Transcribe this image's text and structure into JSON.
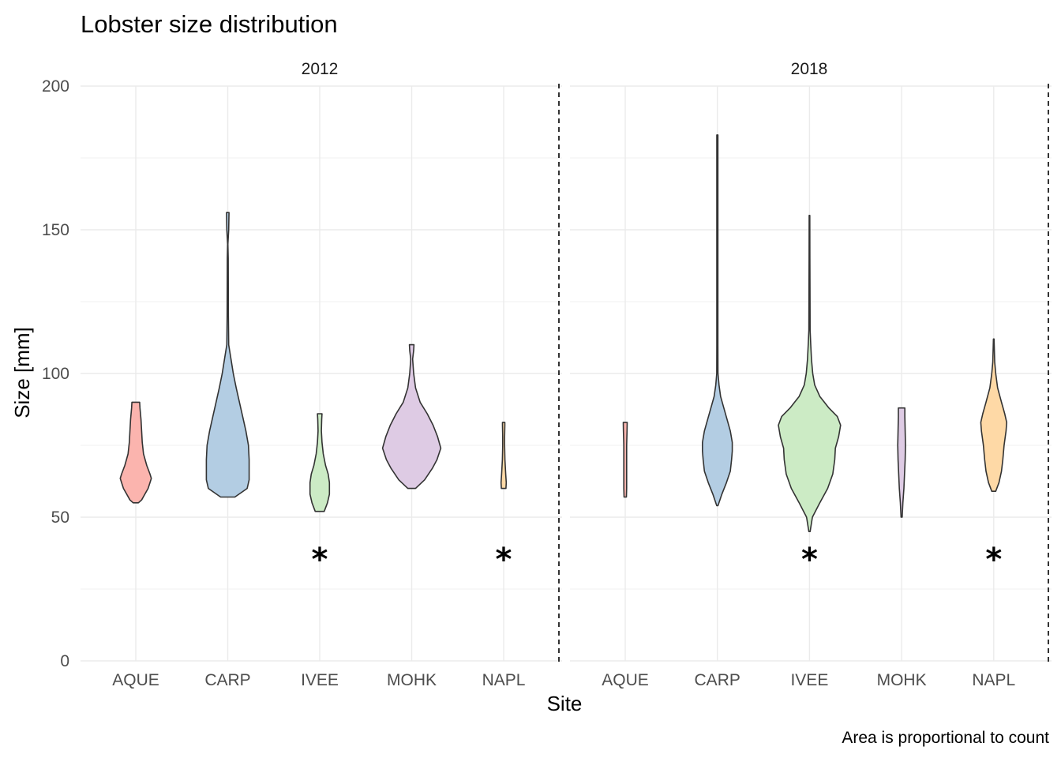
{
  "chart_data": {
    "type": "violin",
    "title": "Lobster size distribution",
    "xlabel": "Site",
    "ylabel": "Size [mm]",
    "caption": "Area is proportional to count",
    "ylim": [
      0,
      200
    ],
    "y_ticks": [
      "0",
      "50",
      "100",
      "150",
      "200"
    ],
    "y_tick_values": [
      0,
      50,
      100,
      150,
      200
    ],
    "categories": [
      "AQUE",
      "CARP",
      "IVEE",
      "MOHK",
      "NAPL"
    ],
    "grid": true,
    "facet_separator": "dashed vertical line after each panel",
    "colors": {
      "AQUE": "#FBB4AE",
      "CARP": "#B3CDE3",
      "IVEE": "#CCEBC5",
      "MOHK": "#DECBE4",
      "NAPL": "#FED9A6",
      "outline": "#333333",
      "grid": "#ebebeb"
    },
    "panels": [
      {
        "label": "2012",
        "significance_marker": "*",
        "violins": [
          {
            "site": "AQUE",
            "profile": [
              [
                55,
                0.4
              ],
              [
                56,
                0.9
              ],
              [
                58,
                1.4
              ],
              [
                60,
                1.9
              ],
              [
                62,
                2.2
              ],
              [
                63.5,
                2.4
              ],
              [
                65,
                2.2
              ],
              [
                68,
                1.7
              ],
              [
                72,
                1.2
              ],
              [
                76,
                1.0
              ],
              [
                80,
                0.9
              ],
              [
                84,
                0.8
              ],
              [
                88,
                0.65
              ],
              [
                90,
                0.6
              ]
            ]
          },
          {
            "site": "CARP",
            "profile": [
              [
                57,
                1.1
              ],
              [
                60,
                3.0
              ],
              [
                63,
                3.3
              ],
              [
                65,
                3.3
              ],
              [
                70,
                3.3
              ],
              [
                75,
                3.2
              ],
              [
                80,
                2.8
              ],
              [
                85,
                2.3
              ],
              [
                90,
                1.8
              ],
              [
                95,
                1.3
              ],
              [
                100,
                0.85
              ],
              [
                105,
                0.5
              ],
              [
                110,
                0.15
              ],
              [
                120,
                0.1
              ],
              [
                140,
                0.07
              ],
              [
                145,
                0.03
              ],
              [
                150,
                0.15
              ],
              [
                156,
                0.2
              ]
            ]
          },
          {
            "site": "IVEE",
            "profile": [
              [
                52,
                0.7
              ],
              [
                55,
                1.2
              ],
              [
                58,
                1.5
              ],
              [
                62,
                1.5
              ],
              [
                65,
                1.3
              ],
              [
                68,
                0.9
              ],
              [
                72,
                0.55
              ],
              [
                76,
                0.35
              ],
              [
                80,
                0.25
              ],
              [
                84,
                0.3
              ],
              [
                86,
                0.35
              ]
            ],
            "significant": true
          },
          {
            "site": "MOHK",
            "profile": [
              [
                60,
                0.6
              ],
              [
                63,
                2.0
              ],
              [
                67,
                3.2
              ],
              [
                70,
                3.9
              ],
              [
                74,
                4.5
              ],
              [
                78,
                4.0
              ],
              [
                82,
                3.3
              ],
              [
                86,
                2.4
              ],
              [
                90,
                1.3
              ],
              [
                95,
                0.6
              ],
              [
                100,
                0.3
              ],
              [
                105,
                0.15
              ],
              [
                108,
                0.3
              ],
              [
                110,
                0.35
              ]
            ]
          },
          {
            "site": "NAPL",
            "profile": [
              [
                60,
                0.35
              ],
              [
                62,
                0.4
              ],
              [
                65,
                0.32
              ],
              [
                70,
                0.2
              ],
              [
                75,
                0.15
              ],
              [
                78,
                0.15
              ],
              [
                82,
                0.18
              ],
              [
                83,
                0.18
              ]
            ],
            "significant": true
          }
        ]
      },
      {
        "label": "2018",
        "significance_marker": "*",
        "violins": [
          {
            "site": "AQUE",
            "profile": [
              [
                57,
                0.18
              ],
              [
                60,
                0.22
              ],
              [
                65,
                0.22
              ],
              [
                70,
                0.22
              ],
              [
                75,
                0.22
              ],
              [
                80,
                0.28
              ],
              [
                83,
                0.3
              ]
            ]
          },
          {
            "site": "CARP",
            "profile": [
              [
                54,
                0.1
              ],
              [
                58,
                0.7
              ],
              [
                62,
                1.4
              ],
              [
                66,
                2.0
              ],
              [
                70,
                2.2
              ],
              [
                73,
                2.3
              ],
              [
                76,
                2.3
              ],
              [
                80,
                2.0
              ],
              [
                84,
                1.5
              ],
              [
                88,
                1.0
              ],
              [
                92,
                0.5
              ],
              [
                96,
                0.25
              ],
              [
                100,
                0.1
              ],
              [
                110,
                0.08
              ],
              [
                150,
                0.08
              ],
              [
                183,
                0.08
              ]
            ]
          },
          {
            "site": "IVEE",
            "profile": [
              [
                45,
                0.1
              ],
              [
                50,
                0.45
              ],
              [
                55,
                1.6
              ],
              [
                60,
                2.8
              ],
              [
                65,
                3.6
              ],
              [
                70,
                3.9
              ],
              [
                74,
                4.0
              ],
              [
                78,
                4.5
              ],
              [
                82,
                4.8
              ],
              [
                85,
                4.3
              ],
              [
                88,
                3.0
              ],
              [
                92,
                1.6
              ],
              [
                96,
                0.8
              ],
              [
                100,
                0.5
              ],
              [
                105,
                0.3
              ],
              [
                110,
                0.2
              ],
              [
                115,
                0.1
              ],
              [
                125,
                0.08
              ],
              [
                140,
                0.06
              ],
              [
                155,
                0.05
              ]
            ],
            "significant": true
          },
          {
            "site": "MOHK",
            "profile": [
              [
                50,
                0.08
              ],
              [
                55,
                0.2
              ],
              [
                60,
                0.35
              ],
              [
                65,
                0.45
              ],
              [
                70,
                0.55
              ],
              [
                75,
                0.6
              ],
              [
                80,
                0.55
              ],
              [
                85,
                0.5
              ],
              [
                88,
                0.5
              ]
            ]
          },
          {
            "site": "NAPL",
            "profile": [
              [
                59,
                0.3
              ],
              [
                62,
                0.8
              ],
              [
                66,
                1.2
              ],
              [
                70,
                1.4
              ],
              [
                75,
                1.6
              ],
              [
                80,
                1.9
              ],
              [
                83,
                2.0
              ],
              [
                86,
                1.7
              ],
              [
                90,
                1.2
              ],
              [
                95,
                0.6
              ],
              [
                100,
                0.3
              ],
              [
                104,
                0.15
              ],
              [
                108,
                0.1
              ],
              [
                112,
                0.05
              ]
            ],
            "significant": true
          }
        ]
      }
    ]
  }
}
